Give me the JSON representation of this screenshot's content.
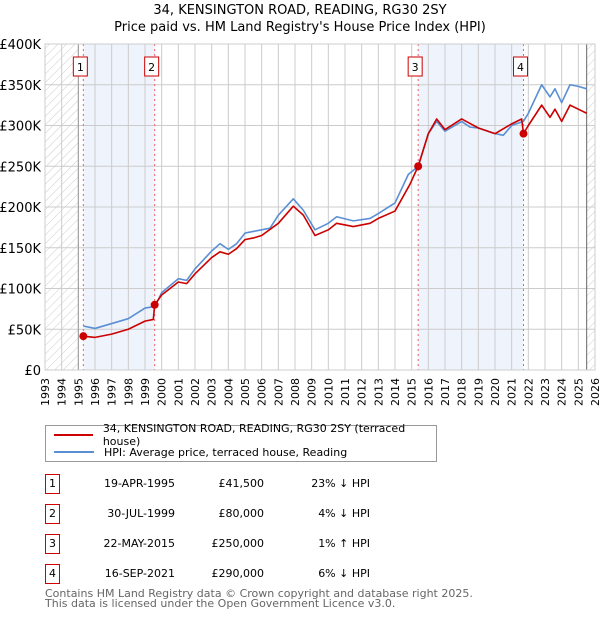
{
  "title": "34, KENSINGTON ROAD, READING, RG30 2SY",
  "subtitle": "Price paid vs. HM Land Registry's House Price Index (HPI)",
  "colors": {
    "property": "#cc0000",
    "hpi": "#5b8fd4",
    "shade": "#eef3fc"
  },
  "chart_data": {
    "type": "line",
    "ylim": [
      0,
      400000
    ],
    "xlim": [
      1993,
      2026
    ],
    "yticks": [
      0,
      50000,
      100000,
      150000,
      200000,
      250000,
      300000,
      350000,
      400000
    ],
    "ytick_labels": [
      "£0",
      "£50K",
      "£100K",
      "£150K",
      "£200K",
      "£250K",
      "£300K",
      "£350K",
      "£400K"
    ],
    "xticks": [
      "1993",
      "1994",
      "1995",
      "1996",
      "1997",
      "1998",
      "1999",
      "2000",
      "2001",
      "2002",
      "2003",
      "2004",
      "2005",
      "2006",
      "2007",
      "2008",
      "2009",
      "2010",
      "2011",
      "2012",
      "2013",
      "2014",
      "2015",
      "2016",
      "2017",
      "2018",
      "2019",
      "2020",
      "2021",
      "2022",
      "2023",
      "2024",
      "2025",
      "2026"
    ],
    "grid": true,
    "series": [
      {
        "name": "34, KENSINGTON ROAD, READING, RG30 2SY (terraced house)",
        "color": "#cc0000",
        "x": [
          1995.3,
          1996,
          1997,
          1998,
          1999,
          1999.5,
          1999.58,
          2000,
          2001,
          2001.5,
          2002,
          2003,
          2003.5,
          2004,
          2004.5,
          2005,
          2005.5,
          2006,
          2007,
          2007.9,
          2008.5,
          2009.2,
          2010,
          2010.5,
          2011.5,
          2012.5,
          2013,
          2014,
          2014.9,
          2015.39,
          2016,
          2016.5,
          2017,
          2018,
          2019,
          2020,
          2021,
          2021.6,
          2021.71,
          2022,
          2022.8,
          2023.3,
          2023.6,
          2024,
          2024.5,
          2025,
          2025.5
        ],
        "y": [
          41500,
          40000,
          44000,
          50000,
          60000,
          62000,
          80000,
          92000,
          108000,
          106000,
          118000,
          138000,
          145000,
          142000,
          149000,
          160000,
          162000,
          165000,
          180000,
          201000,
          190000,
          165000,
          172000,
          180000,
          176000,
          180000,
          186000,
          195000,
          228000,
          250000,
          290000,
          308000,
          295000,
          308000,
          297000,
          290000,
          302000,
          308000,
          290000,
          300000,
          325000,
          310000,
          320000,
          305000,
          325000,
          320000,
          315000
        ]
      },
      {
        "name": "HPI: Average price, terraced house, Reading",
        "color": "#5b8fd4",
        "x": [
          1995.3,
          1996,
          1997,
          1998,
          1999,
          1999.6,
          2000,
          2001,
          2001.5,
          2002,
          2003,
          2003.5,
          2004,
          2004.5,
          2005,
          2005.5,
          2006,
          2006.5,
          2007,
          2007.9,
          2008.5,
          2009.2,
          2010,
          2010.5,
          2011.5,
          2012.5,
          2013,
          2014,
          2014.8,
          2015.4,
          2016,
          2016.5,
          2017,
          2018,
          2018.5,
          2019,
          2020,
          2020.5,
          2021,
          2021.7,
          2022,
          2022.8,
          2023.3,
          2023.6,
          2024,
          2024.5,
          2025,
          2025.5
        ],
        "y": [
          54000,
          51000,
          57000,
          63000,
          76000,
          78000,
          95000,
          112000,
          110000,
          124000,
          146000,
          155000,
          148000,
          155000,
          168000,
          170000,
          172000,
          174000,
          190000,
          210000,
          196000,
          172000,
          180000,
          188000,
          183000,
          186000,
          192000,
          205000,
          240000,
          250000,
          290000,
          305000,
          293000,
          305000,
          298000,
          297000,
          290000,
          288000,
          300000,
          305000,
          315000,
          350000,
          335000,
          345000,
          328000,
          350000,
          348000,
          345000
        ]
      }
    ],
    "sales": [
      {
        "label": "1",
        "x": 1995.3,
        "y": 41500
      },
      {
        "label": "2",
        "x": 1999.58,
        "y": 80000
      },
      {
        "label": "3",
        "x": 2015.39,
        "y": 250000
      },
      {
        "label": "4",
        "x": 2021.71,
        "y": 290000
      }
    ],
    "shaded_ranges": [
      [
        1995.3,
        1999.58
      ],
      [
        2015.39,
        2021.71
      ]
    ],
    "hatched_ranges": [
      [
        1993,
        1995
      ],
      [
        2025.5,
        2026
      ]
    ]
  },
  "legend": {
    "property": "34, KENSINGTON ROAD, READING, RG30 2SY (terraced house)",
    "hpi": "HPI: Average price, terraced house, Reading"
  },
  "transactions": [
    {
      "num": "1",
      "date": "19-APR-1995",
      "price": "£41,500",
      "hpi": "23% ↓ HPI"
    },
    {
      "num": "2",
      "date": "30-JUL-1999",
      "price": "£80,000",
      "hpi": "4% ↓ HPI"
    },
    {
      "num": "3",
      "date": "22-MAY-2015",
      "price": "£250,000",
      "hpi": "1% ↑ HPI"
    },
    {
      "num": "4",
      "date": "16-SEP-2021",
      "price": "£290,000",
      "hpi": "6% ↓ HPI"
    }
  ],
  "footer": {
    "line1": "Contains HM Land Registry data © Crown copyright and database right 2025.",
    "line2": "This data is licensed under the Open Government Licence v3.0."
  }
}
